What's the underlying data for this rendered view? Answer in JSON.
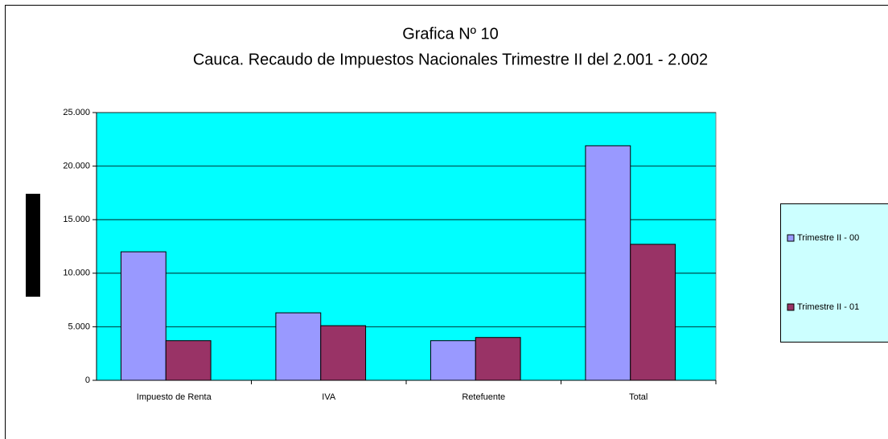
{
  "chart_data": {
    "type": "bar",
    "title": "Grafica Nº 10",
    "subtitle": "Cauca. Recaudo de Impuestos Nacionales Trimestre II del 2.001 - 2.002",
    "categories": [
      "Impuesto de Renta",
      "IVA",
      "Retefuente",
      "Total"
    ],
    "series": [
      {
        "name": "Trimestre II - 00",
        "color": "#9999ff",
        "values": [
          12000,
          6300,
          3700,
          21900
        ]
      },
      {
        "name": "Trimestre II - 01",
        "color": "#993366",
        "values": [
          3700,
          5100,
          4000,
          12700
        ]
      }
    ],
    "ylim": [
      0,
      25000
    ],
    "yticks": [
      0,
      {
        "value": 5000,
        "label": "5.000"
      },
      {
        "value": 10000,
        "label": "10.000"
      },
      {
        "value": 15000,
        "label": "15.000"
      },
      {
        "value": 20000,
        "label": "20.000"
      },
      {
        "value": 25000,
        "label": "25.000"
      }
    ],
    "grid": true,
    "plot_background": "#00ffff",
    "legend": "right"
  }
}
